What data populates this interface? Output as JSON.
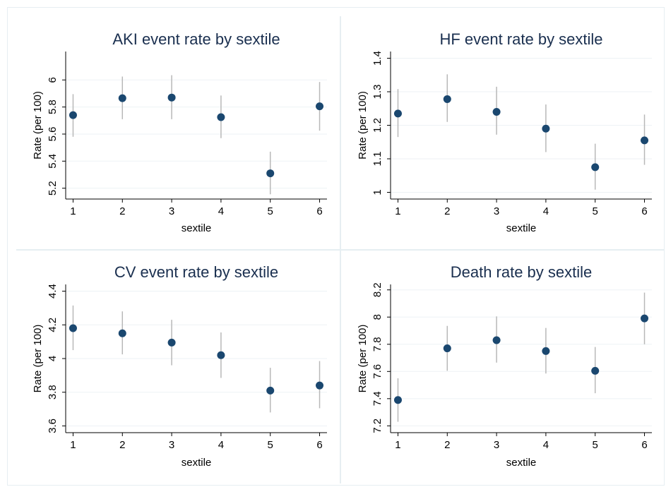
{
  "chart_data": [
    {
      "type": "scatter",
      "title": "AKI event rate by sextile",
      "xlabel": "sextile",
      "ylabel": "Rate (per 100)",
      "x": [
        1,
        2,
        3,
        4,
        5,
        6
      ],
      "y": [
        5.74,
        5.865,
        5.87,
        5.725,
        5.31,
        5.805
      ],
      "ci_low": [
        5.58,
        5.71,
        5.71,
        5.57,
        5.155,
        5.625
      ],
      "ci_high": [
        5.895,
        6.025,
        6.035,
        5.885,
        5.47,
        5.985
      ],
      "xticks": [
        "1",
        "2",
        "3",
        "4",
        "5",
        "6"
      ],
      "yticks": [
        5.2,
        5.4,
        5.6,
        5.8,
        6
      ],
      "ytick_labels": [
        "5.2",
        "5.4",
        "5.6",
        "5.8",
        "6"
      ],
      "xlim": [
        0.85,
        6.15
      ],
      "ylim": [
        5.12,
        6.21
      ],
      "grid": true,
      "point_color": "#1a476f",
      "ci_color": "#b8b8b8"
    },
    {
      "type": "scatter",
      "title": "HF event rate by sextile",
      "xlabel": "sextile",
      "ylabel": "Rate (per 100)",
      "x": [
        1,
        2,
        3,
        4,
        5,
        6
      ],
      "y": [
        1.235,
        1.278,
        1.24,
        1.19,
        1.075,
        1.155
      ],
      "ci_low": [
        1.165,
        1.21,
        1.172,
        1.12,
        1.008,
        1.082
      ],
      "ci_high": [
        1.308,
        1.352,
        1.315,
        1.262,
        1.145,
        1.232
      ],
      "xticks": [
        "1",
        "2",
        "3",
        "4",
        "5",
        "6"
      ],
      "yticks": [
        1,
        1.1,
        1.2,
        1.3,
        1.4
      ],
      "ytick_labels": [
        "1",
        "1.1",
        "1.2",
        "1.3",
        "1.4"
      ],
      "xlim": [
        0.85,
        6.15
      ],
      "ylim": [
        0.98,
        1.42
      ],
      "grid": true,
      "point_color": "#1a476f",
      "ci_color": "#b8b8b8"
    },
    {
      "type": "scatter",
      "title": "CV event rate by sextile",
      "xlabel": "sextile",
      "ylabel": "Rate (per 100)",
      "x": [
        1,
        2,
        3,
        4,
        5,
        6
      ],
      "y": [
        4.18,
        4.15,
        4.095,
        4.02,
        3.81,
        3.84
      ],
      "ci_low": [
        4.05,
        4.025,
        3.96,
        3.885,
        3.68,
        3.705
      ],
      "ci_high": [
        4.315,
        4.28,
        4.23,
        4.155,
        3.945,
        3.985
      ],
      "xticks": [
        "1",
        "2",
        "3",
        "4",
        "5",
        "6"
      ],
      "yticks": [
        3.6,
        3.8,
        4,
        4.2,
        4.4
      ],
      "ytick_labels": [
        "3.6",
        "3.8",
        "4",
        "4.2",
        "4.4"
      ],
      "xlim": [
        0.85,
        6.15
      ],
      "ylim": [
        3.56,
        4.44
      ],
      "grid": true,
      "point_color": "#1a476f",
      "ci_color": "#b8b8b8"
    },
    {
      "type": "scatter",
      "title": "Death rate by sextile",
      "xlabel": "sextile",
      "ylabel": "Rate (per 100)",
      "x": [
        1,
        2,
        3,
        4,
        5,
        6
      ],
      "y": [
        7.39,
        7.77,
        7.83,
        7.75,
        7.605,
        7.99
      ],
      "ci_low": [
        7.23,
        7.605,
        7.665,
        7.585,
        7.44,
        7.8
      ],
      "ci_high": [
        7.55,
        7.935,
        8.005,
        7.92,
        7.78,
        8.18
      ],
      "xticks": [
        "1",
        "2",
        "3",
        "4",
        "5",
        "6"
      ],
      "yticks": [
        7.2,
        7.4,
        7.6,
        7.8,
        8,
        8.2
      ],
      "ytick_labels": [
        "7.2",
        "7.4",
        "7.6",
        "7.8",
        "8",
        "8.2"
      ],
      "xlim": [
        0.85,
        6.15
      ],
      "ylim": [
        7.15,
        8.24
      ],
      "grid": true,
      "point_color": "#1a476f",
      "ci_color": "#b8b8b8"
    }
  ]
}
